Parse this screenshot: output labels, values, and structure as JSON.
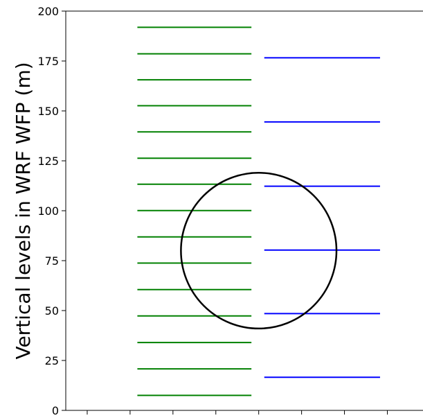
{
  "chart_data": {
    "type": "line",
    "title": "",
    "xlabel": "",
    "ylabel": "Vertical levels in WRF WFP (m)",
    "ylim": [
      0,
      200
    ],
    "xlim": [
      0,
      8.8
    ],
    "yticks": [
      0,
      25,
      50,
      75,
      100,
      125,
      150,
      175,
      200
    ],
    "ytick_labels": [
      "0",
      "25",
      "50",
      "75",
      "100",
      "125",
      "150",
      "175",
      "200"
    ],
    "xticks": [
      0.5,
      1.5,
      2.5,
      3.5,
      4.5,
      5.5,
      6.5,
      7.5,
      8.5
    ],
    "grid": false,
    "series": [
      {
        "color": "#008000",
        "x_range": [
          1.67,
          4.33
        ],
        "levels": [
          7.5,
          20.8,
          34.0,
          47.3,
          60.5,
          73.8,
          86.9,
          100.1,
          113.3,
          126.3,
          139.5,
          152.6,
          165.6,
          178.6,
          191.9
        ]
      },
      {
        "color": "#0000ff",
        "x_range": [
          4.63,
          7.33
        ],
        "levels": [
          16.6,
          48.5,
          80.3,
          112.3,
          144.5,
          176.6
        ]
      }
    ],
    "annotations": [
      {
        "type": "circle",
        "center": [
          4.5,
          80
        ],
        "radius_y": 39,
        "color": "#000000"
      }
    ]
  }
}
